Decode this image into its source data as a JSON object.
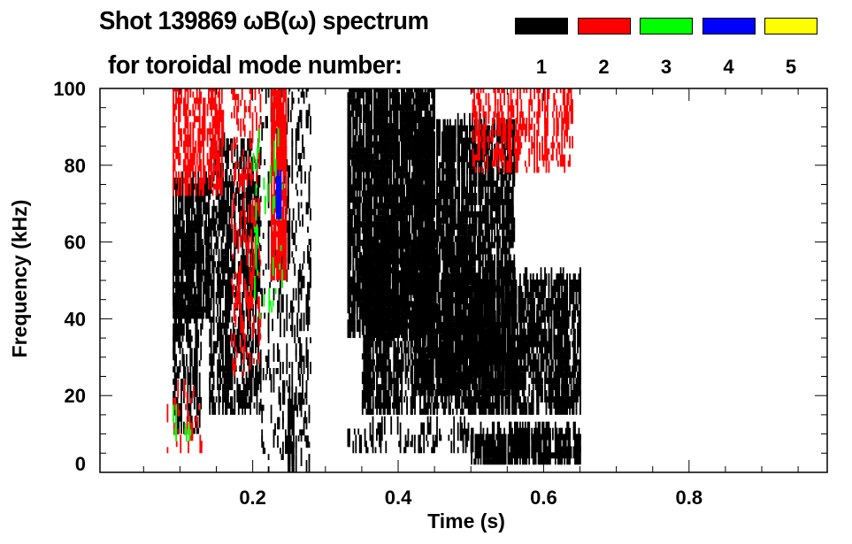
{
  "chart_data": {
    "type": "heatmap",
    "title": "Shot 139869 ωB(ω) spectrum",
    "subtitle": "for toroidal mode number:",
    "xlabel": "Time (s)",
    "ylabel": "Frequency (kHz)",
    "xlim": [
      -0.01,
      0.99
    ],
    "ylim": [
      0,
      100
    ],
    "xticks": [
      0.2,
      0.4,
      0.6,
      0.8
    ],
    "xtick_labels": [
      "0.2",
      "0.4",
      "0.6",
      "0.8"
    ],
    "yticks": [
      0,
      20,
      40,
      60,
      80,
      100
    ],
    "ytick_labels": [
      "0",
      "20",
      "40",
      "60",
      "80",
      "100"
    ],
    "legend": [
      {
        "mode": "1",
        "color": "#000000"
      },
      {
        "mode": "2",
        "color": "#ff0000"
      },
      {
        "mode": "3",
        "color": "#00ff00"
      },
      {
        "mode": "4",
        "color": "#0000ff"
      },
      {
        "mode": "5",
        "color": "#ffff00"
      }
    ],
    "regions": [
      {
        "mode": 1,
        "t": [
          0.09,
          0.14
        ],
        "f": [
          40,
          75
        ],
        "density": 0.85
      },
      {
        "mode": 1,
        "t": [
          0.09,
          0.13
        ],
        "f": [
          10,
          45
        ],
        "density": 0.35
      },
      {
        "mode": 1,
        "t": [
          0.14,
          0.21
        ],
        "f": [
          15,
          85
        ],
        "density": 0.4
      },
      {
        "mode": 1,
        "t": [
          0.21,
          0.28
        ],
        "f": [
          0,
          100
        ],
        "density": 0.15
      },
      {
        "mode": 1,
        "t": [
          0.33,
          0.45
        ],
        "f": [
          35,
          100
        ],
        "density": 0.8
      },
      {
        "mode": 1,
        "t": [
          0.35,
          0.5
        ],
        "f": [
          15,
          60
        ],
        "density": 0.55
      },
      {
        "mode": 1,
        "t": [
          0.42,
          0.56
        ],
        "f": [
          20,
          90
        ],
        "density": 0.6
      },
      {
        "mode": 1,
        "t": [
          0.5,
          0.65
        ],
        "f": [
          15,
          50
        ],
        "density": 0.8
      },
      {
        "mode": 1,
        "t": [
          0.5,
          0.65
        ],
        "f": [
          2,
          9
        ],
        "density": 0.75
      },
      {
        "mode": 1,
        "t": [
          0.33,
          0.5
        ],
        "f": [
          5,
          10
        ],
        "density": 0.2
      },
      {
        "mode": 1,
        "t": [
          0.248,
          0.256
        ],
        "f": [
          0,
          15
        ],
        "density": 0.9
      },
      {
        "mode": 2,
        "t": [
          0.09,
          0.16
        ],
        "f": [
          72,
          100
        ],
        "density": 0.45
      },
      {
        "mode": 2,
        "t": [
          0.225,
          0.245
        ],
        "f": [
          50,
          100
        ],
        "density": 0.85
      },
      {
        "mode": 2,
        "t": [
          0.17,
          0.21
        ],
        "f": [
          25,
          100
        ],
        "density": 0.15
      },
      {
        "mode": 2,
        "t": [
          0.5,
          0.64
        ],
        "f": [
          78,
          100
        ],
        "density": 0.3
      },
      {
        "mode": 2,
        "t": [
          0.08,
          0.13
        ],
        "f": [
          5,
          20
        ],
        "density": 0.08
      },
      {
        "mode": 3,
        "t": [
          0.2,
          0.24
        ],
        "f": [
          40,
          85
        ],
        "density": 0.05
      },
      {
        "mode": 3,
        "t": [
          0.09,
          0.12
        ],
        "f": [
          8,
          15
        ],
        "density": 0.05
      },
      {
        "mode": 4,
        "t": [
          0.232,
          0.238
        ],
        "f": [
          66,
          74
        ],
        "density": 0.9
      }
    ]
  }
}
